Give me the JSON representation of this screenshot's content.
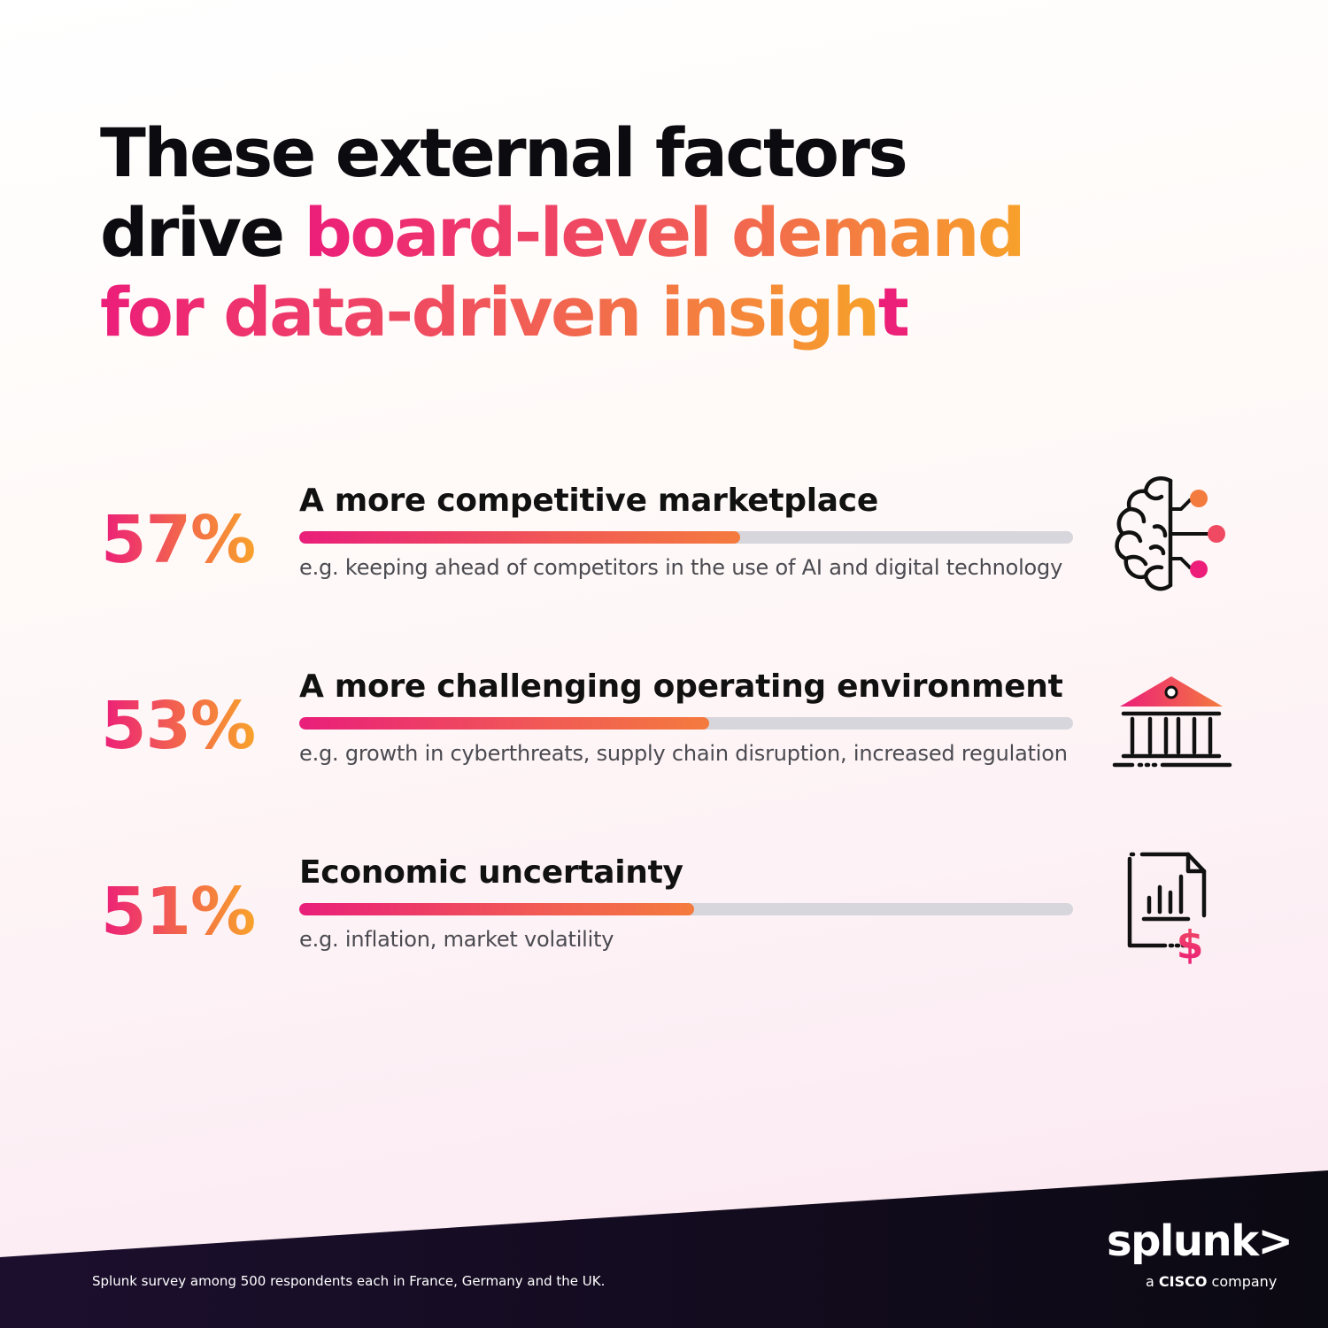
{
  "headline": {
    "line1": "These external factors",
    "line2_plain": "drive ",
    "line2_highlight": "board-level demand",
    "line3_highlight": "for data-driven insight"
  },
  "chart_data": {
    "type": "bar",
    "orientation": "horizontal",
    "unit": "%",
    "xlim": [
      0,
      100
    ],
    "items": [
      {
        "value": 57,
        "label": "57%",
        "category": "A more competitive marketplace",
        "description": "e.g. keeping ahead of competitors in the use of AI and digital technology",
        "icon": "brain-network-icon"
      },
      {
        "value": 53,
        "label": "53%",
        "category": "A more challenging operating environment",
        "description": "e.g. growth in cyberthreats, supply chain disruption, increased regulation",
        "icon": "government-building-icon"
      },
      {
        "value": 51,
        "label": "51%",
        "category": "Economic uncertainty",
        "description": "e.g. inflation, market volatility",
        "icon": "financial-report-icon"
      }
    ]
  },
  "footer": {
    "source": "Splunk survey among 500 respondents each in France, Germany and the UK.",
    "logo_word": "splunk>",
    "logo_tagline_prefix": "a ",
    "logo_tagline_brand": "CISCO",
    "logo_tagline_suffix": " company"
  },
  "colors": {
    "accent_pink": "#ec1e79",
    "accent_orange": "#f7a12a",
    "track_gray": "#d6d6dc",
    "footer_dark": "#120d1f"
  }
}
